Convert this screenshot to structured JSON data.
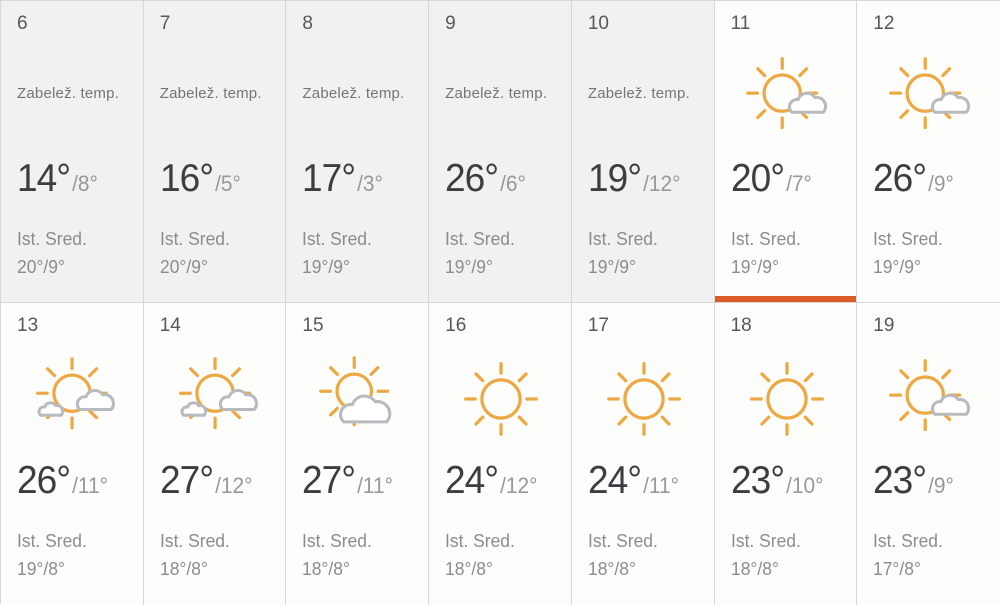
{
  "labels": {
    "recorded_temp": "Zabelež. temp.",
    "historical_avg": "Ist. Sred."
  },
  "colors": {
    "accent": "#DC5A28",
    "sun": "#ECA943",
    "cloud": "#B7BBC0",
    "past_bg": "#F2F1EF",
    "cell_bg": "#FDFDFC",
    "grid_line": "#D8D7D4"
  },
  "days": [
    {
      "date": "6",
      "state": "past",
      "high": "14°",
      "low": "/8°",
      "hist": "20°/9°"
    },
    {
      "date": "7",
      "state": "past",
      "high": "16°",
      "low": "/5°",
      "hist": "20°/9°"
    },
    {
      "date": "8",
      "state": "past",
      "high": "17°",
      "low": "/3°",
      "hist": "19°/9°"
    },
    {
      "date": "9",
      "state": "past",
      "high": "26°",
      "low": "/6°",
      "hist": "19°/9°"
    },
    {
      "date": "10",
      "state": "past",
      "high": "19°",
      "low": "/12°",
      "hist": "19°/9°"
    },
    {
      "date": "11",
      "state": "selected",
      "icon": "sun-cloud-icon",
      "high": "20°",
      "low": "/7°",
      "hist": "19°/9°"
    },
    {
      "date": "12",
      "state": "forecast",
      "icon": "sun-cloud-icon",
      "high": "26°",
      "low": "/9°",
      "hist": "19°/9°"
    },
    {
      "date": "13",
      "state": "forecast",
      "icon": "sun-two-clouds-icon",
      "high": "26°",
      "low": "/11°",
      "hist": "19°/8°"
    },
    {
      "date": "14",
      "state": "forecast",
      "icon": "sun-two-clouds-icon",
      "high": "27°",
      "low": "/12°",
      "hist": "18°/8°"
    },
    {
      "date": "15",
      "state": "forecast",
      "icon": "sun-big-cloud-icon",
      "high": "27°",
      "low": "/11°",
      "hist": "18°/8°"
    },
    {
      "date": "16",
      "state": "forecast",
      "icon": "sun-icon",
      "high": "24°",
      "low": "/12°",
      "hist": "18°/8°"
    },
    {
      "date": "17",
      "state": "forecast",
      "icon": "sun-icon",
      "high": "24°",
      "low": "/11°",
      "hist": "18°/8°"
    },
    {
      "date": "18",
      "state": "forecast",
      "icon": "sun-icon",
      "high": "23°",
      "low": "/10°",
      "hist": "18°/8°"
    },
    {
      "date": "19",
      "state": "forecast",
      "icon": "sun-cloud-icon",
      "high": "23°",
      "low": "/9°",
      "hist": "17°/8°"
    }
  ]
}
